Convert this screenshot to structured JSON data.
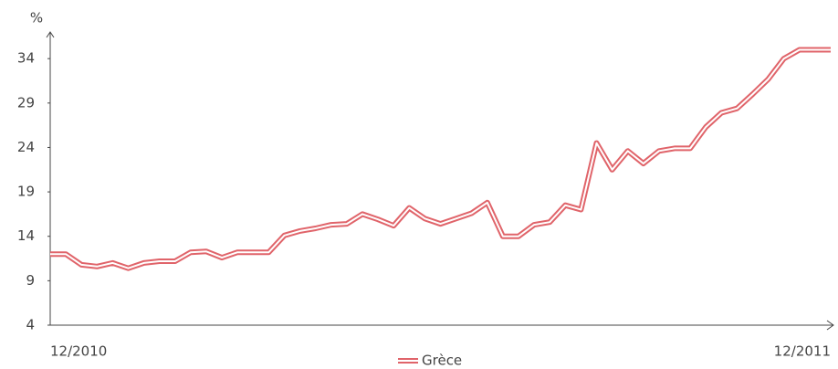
{
  "chart_data": {
    "type": "line",
    "y_label": "%",
    "categories": [
      "12/2010",
      null,
      null,
      null,
      null,
      null,
      null,
      null,
      null,
      null,
      null,
      null,
      null,
      null,
      null,
      null,
      null,
      null,
      null,
      null,
      null,
      null,
      null,
      null,
      null,
      null,
      null,
      null,
      null,
      null,
      null,
      null,
      null,
      null,
      null,
      null,
      null,
      null,
      null,
      null,
      null,
      null,
      null,
      null,
      null,
      null,
      null,
      null,
      null,
      null,
      "12/2011"
    ],
    "series": [
      {
        "name": "Grèce",
        "color": "#e0646a",
        "values": [
          12.0,
          12.0,
          10.8,
          10.6,
          11.0,
          10.4,
          11.0,
          11.2,
          11.2,
          12.2,
          12.3,
          11.6,
          12.2,
          12.2,
          12.2,
          14.1,
          14.6,
          14.9,
          15.3,
          15.4,
          16.5,
          15.9,
          15.2,
          17.2,
          16.0,
          15.4,
          16.0,
          16.6,
          17.8,
          14.0,
          14.0,
          15.3,
          15.6,
          17.5,
          17.0,
          24.5,
          21.5,
          23.6,
          22.2,
          23.6,
          23.9,
          23.9,
          26.3,
          27.9,
          28.4,
          30.0,
          31.7,
          34.0,
          35.0,
          35.0,
          35.0
        ]
      }
    ],
    "ylim": [
      4,
      37
    ],
    "yticks": [
      4,
      9,
      14,
      19,
      24,
      29,
      34
    ],
    "legend": "bottom"
  }
}
